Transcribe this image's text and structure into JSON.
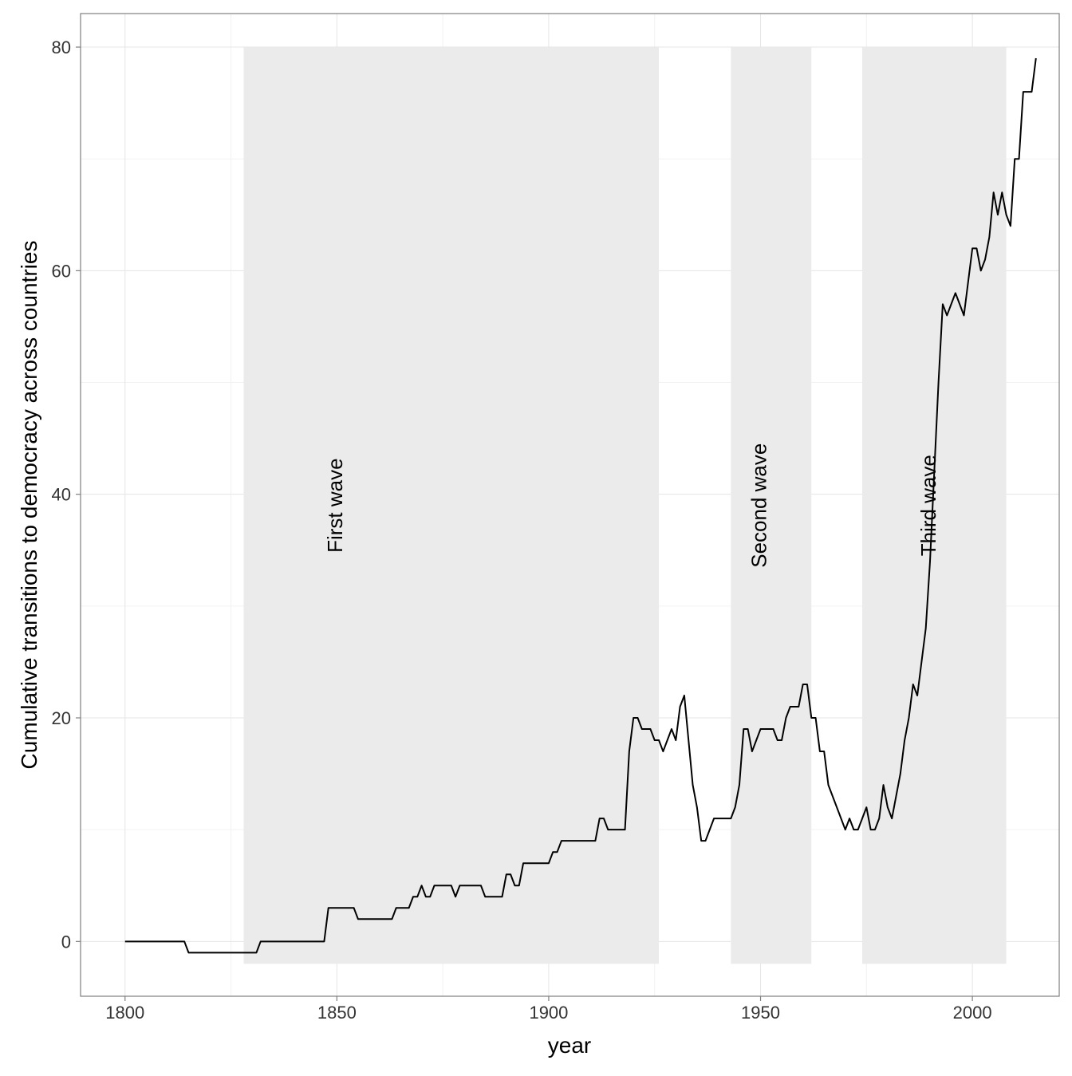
{
  "chart_data": {
    "type": "line",
    "x_label": "year",
    "y_label": "Cumulative transitions to democracy across countries",
    "xlim": [
      1789.5,
      2020.5
    ],
    "ylim": [
      -4.9,
      83
    ],
    "xticks": [
      1800,
      1850,
      1900,
      1950,
      2000
    ],
    "yticks": [
      0,
      20,
      40,
      60,
      80
    ],
    "x_minor_grid": [
      1825,
      1875,
      1925,
      1975
    ],
    "y_minor_grid": [
      10,
      30,
      50,
      70
    ],
    "grid": true,
    "bands": [
      {
        "label": "First wave",
        "start": 1828,
        "end": 1926,
        "ymin": -2,
        "ymax": 80,
        "label_x": 1850,
        "label_y": 39
      },
      {
        "label": "Second wave",
        "start": 1943,
        "end": 1962,
        "ymin": -2,
        "ymax": 80,
        "label_x": 1950,
        "label_y": 39
      },
      {
        "label": "Third wave",
        "start": 1974,
        "end": 2008,
        "ymin": -2,
        "ymax": 80,
        "label_x": 1990,
        "label_y": 39
      }
    ],
    "band_color": "#ebebeb",
    "color": "#000000",
    "x": [
      1800,
      1801,
      1802,
      1803,
      1804,
      1805,
      1806,
      1807,
      1808,
      1809,
      1810,
      1811,
      1812,
      1813,
      1814,
      1815,
      1816,
      1817,
      1818,
      1819,
      1820,
      1821,
      1822,
      1823,
      1824,
      1825,
      1826,
      1827,
      1828,
      1829,
      1830,
      1831,
      1832,
      1833,
      1834,
      1835,
      1836,
      1837,
      1838,
      1839,
      1840,
      1841,
      1842,
      1843,
      1844,
      1845,
      1846,
      1847,
      1848,
      1849,
      1850,
      1851,
      1852,
      1853,
      1854,
      1855,
      1856,
      1857,
      1858,
      1859,
      1860,
      1861,
      1862,
      1863,
      1864,
      1865,
      1866,
      1867,
      1868,
      1869,
      1870,
      1871,
      1872,
      1873,
      1874,
      1875,
      1876,
      1877,
      1878,
      1879,
      1880,
      1881,
      1882,
      1883,
      1884,
      1885,
      1886,
      1887,
      1888,
      1889,
      1890,
      1891,
      1892,
      1893,
      1894,
      1895,
      1896,
      1897,
      1898,
      1899,
      1900,
      1901,
      1902,
      1903,
      1904,
      1905,
      1906,
      1907,
      1908,
      1909,
      1910,
      1911,
      1912,
      1913,
      1914,
      1915,
      1916,
      1917,
      1918,
      1919,
      1920,
      1921,
      1922,
      1923,
      1924,
      1925,
      1926,
      1927,
      1928,
      1929,
      1930,
      1931,
      1932,
      1933,
      1934,
      1935,
      1936,
      1937,
      1938,
      1939,
      1940,
      1941,
      1942,
      1943,
      1944,
      1945,
      1946,
      1947,
      1948,
      1949,
      1950,
      1951,
      1952,
      1953,
      1954,
      1955,
      1956,
      1957,
      1958,
      1959,
      1960,
      1961,
      1962,
      1963,
      1964,
      1965,
      1966,
      1967,
      1968,
      1969,
      1970,
      1971,
      1972,
      1973,
      1974,
      1975,
      1976,
      1977,
      1978,
      1979,
      1980,
      1981,
      1982,
      1983,
      1984,
      1985,
      1986,
      1987,
      1988,
      1989,
      1990,
      1991,
      1992,
      1993,
      1994,
      1995,
      1996,
      1997,
      1998,
      1999,
      2000,
      2001,
      2002,
      2003,
      2004,
      2005,
      2006,
      2007,
      2008,
      2009,
      2010,
      2011,
      2012,
      2013,
      2014,
      2015
    ],
    "values": [
      0,
      0,
      0,
      0,
      0,
      0,
      0,
      0,
      0,
      0,
      0,
      0,
      0,
      0,
      0,
      -1,
      -1,
      -1,
      -1,
      -1,
      -1,
      -1,
      -1,
      -1,
      -1,
      -1,
      -1,
      -1,
      -1,
      -1,
      -1,
      -1,
      0,
      0,
      0,
      0,
      0,
      0,
      0,
      0,
      0,
      0,
      0,
      0,
      0,
      0,
      0,
      0,
      3,
      3,
      3,
      3,
      3,
      3,
      3,
      2,
      2,
      2,
      2,
      2,
      2,
      2,
      2,
      2,
      3,
      3,
      3,
      3,
      4,
      4,
      5,
      4,
      4,
      5,
      5,
      5,
      5,
      5,
      4,
      5,
      5,
      5,
      5,
      5,
      5,
      4,
      4,
      4,
      4,
      4,
      6,
      6,
      5,
      5,
      7,
      7,
      7,
      7,
      7,
      7,
      7,
      8,
      8,
      9,
      9,
      9,
      9,
      9,
      9,
      9,
      9,
      9,
      11,
      11,
      10,
      10,
      10,
      10,
      10,
      17,
      20,
      20,
      19,
      19,
      19,
      18,
      18,
      17,
      18,
      19,
      18,
      21,
      22,
      18,
      14,
      12,
      9,
      9,
      10,
      11,
      11,
      11,
      11,
      11,
      12,
      14,
      19,
      19,
      17,
      18,
      19,
      19,
      19,
      19,
      18,
      18,
      20,
      21,
      21,
      21,
      23,
      23,
      20,
      20,
      17,
      17,
      14,
      13,
      12,
      11,
      10,
      11,
      10,
      10,
      11,
      12,
      10,
      10,
      11,
      14,
      12,
      11,
      13,
      15,
      18,
      20,
      23,
      22,
      25,
      28,
      34,
      42,
      50,
      57,
      56,
      57,
      58,
      57,
      56,
      59,
      62,
      62,
      60,
      61,
      63,
      67,
      65,
      67,
      65,
      64,
      70,
      70,
      76,
      76,
      76,
      79
    ]
  }
}
